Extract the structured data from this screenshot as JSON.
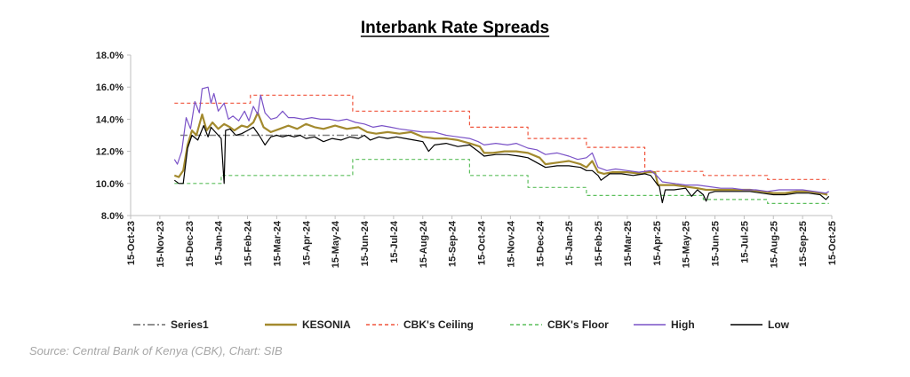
{
  "chart_data": {
    "type": "line",
    "title": "Interbank Rate Spreads",
    "xlabel": "",
    "ylabel": "",
    "ylim": [
      8.0,
      18.0
    ],
    "y_ticks": [
      "8.0%",
      "10.0%",
      "12.0%",
      "14.0%",
      "16.0%",
      "18.0%"
    ],
    "y_tick_values": [
      8,
      10,
      12,
      14,
      16,
      18
    ],
    "x_ticks": [
      "15-Oct-23",
      "15-Nov-23",
      "15-Dec-23",
      "15-Jan-24",
      "15-Feb-24",
      "15-Mar-24",
      "15-Apr-24",
      "15-May-24",
      "15-Jun-24",
      "15-Jul-24",
      "15-Aug-24",
      "15-Sep-24",
      "15-Oct-24",
      "15-Nov-24",
      "15-Dec-24",
      "15-Jan-25",
      "15-Feb-25",
      "15-Mar-25",
      "15-Apr-25",
      "15-May-25",
      "15-Jun-25",
      "15-Jul-25",
      "15-Aug-25",
      "15-Sep-25",
      "15-Oct-25"
    ],
    "x_units": "months since 15-Oct-23",
    "xlim": [
      0,
      24
    ],
    "series": [
      {
        "name": "Series1",
        "color": "#808080",
        "style": "dashdot",
        "points": [
          [
            1.7,
            13.0
          ],
          [
            5.0,
            13.0
          ],
          [
            5.5,
            13.0
          ],
          [
            6.0,
            13.0
          ],
          [
            6.5,
            13.0
          ],
          [
            7.0,
            13.0
          ],
          [
            7.5,
            13.0
          ],
          [
            8.0,
            13.0
          ]
        ]
      },
      {
        "name": "KESONIA",
        "color": "#a38a2e",
        "style": "solid",
        "points": [
          [
            1.5,
            10.5
          ],
          [
            1.65,
            10.4
          ],
          [
            1.8,
            10.8
          ],
          [
            1.95,
            12.4
          ],
          [
            2.1,
            13.3
          ],
          [
            2.25,
            13.0
          ],
          [
            2.45,
            14.3
          ],
          [
            2.6,
            13.3
          ],
          [
            2.8,
            13.8
          ],
          [
            3.0,
            13.4
          ],
          [
            3.2,
            13.7
          ],
          [
            3.4,
            13.5
          ],
          [
            3.55,
            13.3
          ],
          [
            3.8,
            13.6
          ],
          [
            4.0,
            13.5
          ],
          [
            4.2,
            13.8
          ],
          [
            4.35,
            14.4
          ],
          [
            4.55,
            13.5
          ],
          [
            4.8,
            13.2
          ],
          [
            5.1,
            13.4
          ],
          [
            5.4,
            13.6
          ],
          [
            5.7,
            13.4
          ],
          [
            6.0,
            13.7
          ],
          [
            6.3,
            13.5
          ],
          [
            6.6,
            13.4
          ],
          [
            7.0,
            13.6
          ],
          [
            7.4,
            13.4
          ],
          [
            7.8,
            13.5
          ],
          [
            8.1,
            13.2
          ],
          [
            8.4,
            13.1
          ],
          [
            8.8,
            13.2
          ],
          [
            9.2,
            13.1
          ],
          [
            9.6,
            13.2
          ],
          [
            10.0,
            12.9
          ],
          [
            10.4,
            12.8
          ],
          [
            10.8,
            12.8
          ],
          [
            11.2,
            12.7
          ],
          [
            11.6,
            12.5
          ],
          [
            11.95,
            12.3
          ],
          [
            12.1,
            11.9
          ],
          [
            12.4,
            11.9
          ],
          [
            12.8,
            12.0
          ],
          [
            13.2,
            12.0
          ],
          [
            13.6,
            11.9
          ],
          [
            14.0,
            11.6
          ],
          [
            14.2,
            11.2
          ],
          [
            14.6,
            11.3
          ],
          [
            15.0,
            11.4
          ],
          [
            15.4,
            11.2
          ],
          [
            15.6,
            11.0
          ],
          [
            15.8,
            11.4
          ],
          [
            16.0,
            10.7
          ],
          [
            16.2,
            10.6
          ],
          [
            16.5,
            10.7
          ],
          [
            17.0,
            10.7
          ],
          [
            17.5,
            10.6
          ],
          [
            17.7,
            10.7
          ],
          [
            17.95,
            10.7
          ],
          [
            18.05,
            9.9
          ],
          [
            18.2,
            9.9
          ],
          [
            18.6,
            9.9
          ],
          [
            19.0,
            9.8
          ],
          [
            19.4,
            9.7
          ],
          [
            19.7,
            9.6
          ],
          [
            20.0,
            9.6
          ],
          [
            20.4,
            9.6
          ],
          [
            20.8,
            9.6
          ],
          [
            21.2,
            9.6
          ],
          [
            21.6,
            9.5
          ],
          [
            22.0,
            9.4
          ],
          [
            22.4,
            9.4
          ],
          [
            22.8,
            9.5
          ],
          [
            23.2,
            9.5
          ],
          [
            23.6,
            9.4
          ],
          [
            23.85,
            9.3
          ]
        ]
      },
      {
        "name": "CBK's Ceiling",
        "color": "#f0553d",
        "style": "dashed",
        "points": [
          [
            1.5,
            15.0
          ],
          [
            4.1,
            15.0
          ],
          [
            4.1,
            15.5
          ],
          [
            7.6,
            15.5
          ],
          [
            7.6,
            14.5
          ],
          [
            11.6,
            14.5
          ],
          [
            11.6,
            13.5
          ],
          [
            13.6,
            13.5
          ],
          [
            13.6,
            12.8
          ],
          [
            15.6,
            12.8
          ],
          [
            15.6,
            12.25
          ],
          [
            17.6,
            12.25
          ],
          [
            17.6,
            10.75
          ],
          [
            19.6,
            10.75
          ],
          [
            19.6,
            10.5
          ],
          [
            21.8,
            10.5
          ],
          [
            21.8,
            10.25
          ],
          [
            23.9,
            10.25
          ]
        ]
      },
      {
        "name": "CBK's Floor",
        "color": "#5cbf5c",
        "style": "dashed",
        "points": [
          [
            1.5,
            10.0
          ],
          [
            3.1,
            10.0
          ],
          [
            3.1,
            10.5
          ],
          [
            7.6,
            10.5
          ],
          [
            7.6,
            11.5
          ],
          [
            11.6,
            11.5
          ],
          [
            11.6,
            10.5
          ],
          [
            13.6,
            10.5
          ],
          [
            13.6,
            9.75
          ],
          [
            15.6,
            9.75
          ],
          [
            15.6,
            9.25
          ],
          [
            17.6,
            9.25
          ],
          [
            17.6,
            9.25
          ],
          [
            19.6,
            9.25
          ],
          [
            19.6,
            9.0
          ],
          [
            21.8,
            9.0
          ],
          [
            21.8,
            8.75
          ],
          [
            23.9,
            8.75
          ]
        ]
      },
      {
        "name": "High",
        "color": "#7a52c7",
        "style": "solid",
        "points": [
          [
            1.5,
            11.5
          ],
          [
            1.6,
            11.2
          ],
          [
            1.75,
            12.0
          ],
          [
            1.9,
            14.1
          ],
          [
            2.05,
            13.4
          ],
          [
            2.2,
            15.1
          ],
          [
            2.35,
            14.4
          ],
          [
            2.45,
            15.9
          ],
          [
            2.65,
            16.0
          ],
          [
            2.75,
            15.0
          ],
          [
            2.85,
            15.6
          ],
          [
            3.0,
            14.5
          ],
          [
            3.2,
            15.0
          ],
          [
            3.35,
            14.0
          ],
          [
            3.5,
            14.2
          ],
          [
            3.7,
            13.9
          ],
          [
            3.9,
            14.5
          ],
          [
            4.05,
            13.9
          ],
          [
            4.2,
            14.8
          ],
          [
            4.35,
            14.3
          ],
          [
            4.45,
            15.5
          ],
          [
            4.6,
            14.4
          ],
          [
            4.8,
            14.0
          ],
          [
            5.0,
            14.1
          ],
          [
            5.2,
            14.5
          ],
          [
            5.4,
            14.1
          ],
          [
            5.6,
            14.1
          ],
          [
            5.9,
            14.0
          ],
          [
            6.2,
            14.1
          ],
          [
            6.5,
            14.0
          ],
          [
            6.8,
            14.0
          ],
          [
            7.1,
            13.9
          ],
          [
            7.4,
            14.0
          ],
          [
            7.7,
            13.8
          ],
          [
            8.0,
            13.7
          ],
          [
            8.3,
            13.5
          ],
          [
            8.6,
            13.6
          ],
          [
            8.9,
            13.5
          ],
          [
            9.2,
            13.4
          ],
          [
            9.6,
            13.3
          ],
          [
            10.0,
            13.2
          ],
          [
            10.4,
            13.2
          ],
          [
            10.8,
            13.0
          ],
          [
            11.2,
            12.9
          ],
          [
            11.6,
            12.8
          ],
          [
            11.9,
            12.6
          ],
          [
            12.1,
            12.4
          ],
          [
            12.5,
            12.5
          ],
          [
            12.9,
            12.4
          ],
          [
            13.2,
            12.5
          ],
          [
            13.6,
            12.2
          ],
          [
            13.9,
            12.1
          ],
          [
            14.2,
            11.8
          ],
          [
            14.6,
            11.9
          ],
          [
            15.0,
            11.7
          ],
          [
            15.3,
            11.5
          ],
          [
            15.6,
            11.6
          ],
          [
            15.8,
            11.9
          ],
          [
            16.0,
            11.0
          ],
          [
            16.3,
            10.8
          ],
          [
            16.6,
            10.9
          ],
          [
            17.0,
            10.8
          ],
          [
            17.4,
            10.7
          ],
          [
            17.8,
            10.8
          ],
          [
            18.0,
            10.5
          ],
          [
            18.2,
            10.1
          ],
          [
            18.6,
            10.0
          ],
          [
            19.0,
            9.9
          ],
          [
            19.4,
            9.9
          ],
          [
            19.8,
            9.8
          ],
          [
            20.2,
            9.7
          ],
          [
            20.6,
            9.7
          ],
          [
            21.0,
            9.6
          ],
          [
            21.4,
            9.6
          ],
          [
            21.8,
            9.5
          ],
          [
            22.2,
            9.6
          ],
          [
            22.6,
            9.6
          ],
          [
            23.0,
            9.6
          ],
          [
            23.4,
            9.5
          ],
          [
            23.8,
            9.4
          ],
          [
            23.9,
            9.5
          ]
        ]
      },
      {
        "name": "Low",
        "color": "#000000",
        "style": "solid",
        "points": [
          [
            1.5,
            10.2
          ],
          [
            1.65,
            10.0
          ],
          [
            1.8,
            10.0
          ],
          [
            1.95,
            12.2
          ],
          [
            2.1,
            13.0
          ],
          [
            2.3,
            12.7
          ],
          [
            2.5,
            13.6
          ],
          [
            2.65,
            12.9
          ],
          [
            2.75,
            13.5
          ],
          [
            2.9,
            13.2
          ],
          [
            3.0,
            13.0
          ],
          [
            3.1,
            12.8
          ],
          [
            3.2,
            10.0
          ],
          [
            3.25,
            13.3
          ],
          [
            3.4,
            13.4
          ],
          [
            3.6,
            13.0
          ],
          [
            3.8,
            13.1
          ],
          [
            4.0,
            13.3
          ],
          [
            4.2,
            13.5
          ],
          [
            4.4,
            13.0
          ],
          [
            4.6,
            12.4
          ],
          [
            4.8,
            12.9
          ],
          [
            5.0,
            13.0
          ],
          [
            5.2,
            12.9
          ],
          [
            5.4,
            13.0
          ],
          [
            5.6,
            12.9
          ],
          [
            5.8,
            13.0
          ],
          [
            6.0,
            12.8
          ],
          [
            6.3,
            12.9
          ],
          [
            6.6,
            12.6
          ],
          [
            6.9,
            12.8
          ],
          [
            7.2,
            12.7
          ],
          [
            7.5,
            12.9
          ],
          [
            7.8,
            12.8
          ],
          [
            8.0,
            13.0
          ],
          [
            8.2,
            12.7
          ],
          [
            8.5,
            12.9
          ],
          [
            8.8,
            12.8
          ],
          [
            9.1,
            12.9
          ],
          [
            9.4,
            12.8
          ],
          [
            9.7,
            12.7
          ],
          [
            10.0,
            12.6
          ],
          [
            10.2,
            12.0
          ],
          [
            10.4,
            12.4
          ],
          [
            10.8,
            12.5
          ],
          [
            11.2,
            12.3
          ],
          [
            11.6,
            12.4
          ],
          [
            11.9,
            12.0
          ],
          [
            12.1,
            11.7
          ],
          [
            12.5,
            11.8
          ],
          [
            12.9,
            11.8
          ],
          [
            13.3,
            11.7
          ],
          [
            13.6,
            11.6
          ],
          [
            13.9,
            11.3
          ],
          [
            14.2,
            11.0
          ],
          [
            14.6,
            11.1
          ],
          [
            15.0,
            11.1
          ],
          [
            15.4,
            11.0
          ],
          [
            15.6,
            10.8
          ],
          [
            15.8,
            10.8
          ],
          [
            16.0,
            10.5
          ],
          [
            16.1,
            10.2
          ],
          [
            16.4,
            10.6
          ],
          [
            16.8,
            10.6
          ],
          [
            17.2,
            10.5
          ],
          [
            17.6,
            10.6
          ],
          [
            17.8,
            10.5
          ],
          [
            18.0,
            10.0
          ],
          [
            18.1,
            9.8
          ],
          [
            18.2,
            8.8
          ],
          [
            18.3,
            9.6
          ],
          [
            18.6,
            9.6
          ],
          [
            19.0,
            9.7
          ],
          [
            19.2,
            9.2
          ],
          [
            19.4,
            9.6
          ],
          [
            19.6,
            9.3
          ],
          [
            19.7,
            8.9
          ],
          [
            19.8,
            9.4
          ],
          [
            20.0,
            9.5
          ],
          [
            20.4,
            9.5
          ],
          [
            20.8,
            9.5
          ],
          [
            21.2,
            9.5
          ],
          [
            21.6,
            9.4
          ],
          [
            22.0,
            9.3
          ],
          [
            22.4,
            9.3
          ],
          [
            22.8,
            9.4
          ],
          [
            23.2,
            9.4
          ],
          [
            23.6,
            9.3
          ],
          [
            23.8,
            9.0
          ],
          [
            23.9,
            9.2
          ]
        ]
      }
    ],
    "legend": {
      "position": "bottom",
      "entries": [
        "Series1",
        "KESONIA",
        "CBK's Ceiling",
        "CBK's Floor",
        "High",
        "Low"
      ]
    }
  },
  "source_note": "Source: Central Bank of Kenya (CBK), Chart: SIB"
}
